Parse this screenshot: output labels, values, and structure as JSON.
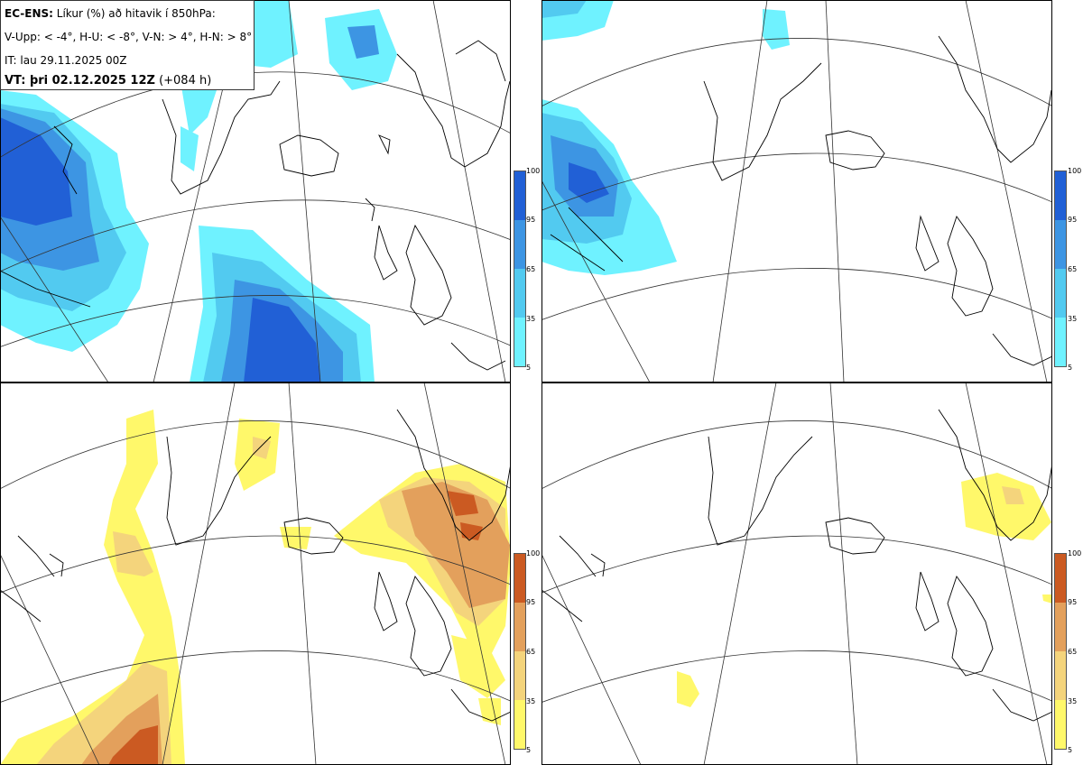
{
  "header": {
    "model": "EC-ENS:",
    "description": " Líkur (%) að hitavik í 850hPa:",
    "categories": "V-Upp: < -4°, H-U: < -8°, V-N: > 4°, H-N: > 8°",
    "init_time": "IT: lau 29.11.2025 00Z",
    "valid_label": "VT: þri 02.12.2025 12Z",
    "lead": " (+084 h)"
  },
  "colorbar": {
    "ticks": [
      "100",
      "95",
      "65",
      "35",
      "5"
    ],
    "blue_colors": [
      "#6ff2ff",
      "#52caf0",
      "#3d95e3",
      "#2160d6"
    ],
    "orange_colors": [
      "#fff86a",
      "#f4d47c",
      "#e3a05c",
      "#cb5a22"
    ]
  },
  "panels": [
    {
      "id": "top-left",
      "scheme": "blue"
    },
    {
      "id": "top-right",
      "scheme": "blue"
    },
    {
      "id": "bottom-left",
      "scheme": "orange"
    },
    {
      "id": "bottom-right",
      "scheme": "orange"
    }
  ]
}
